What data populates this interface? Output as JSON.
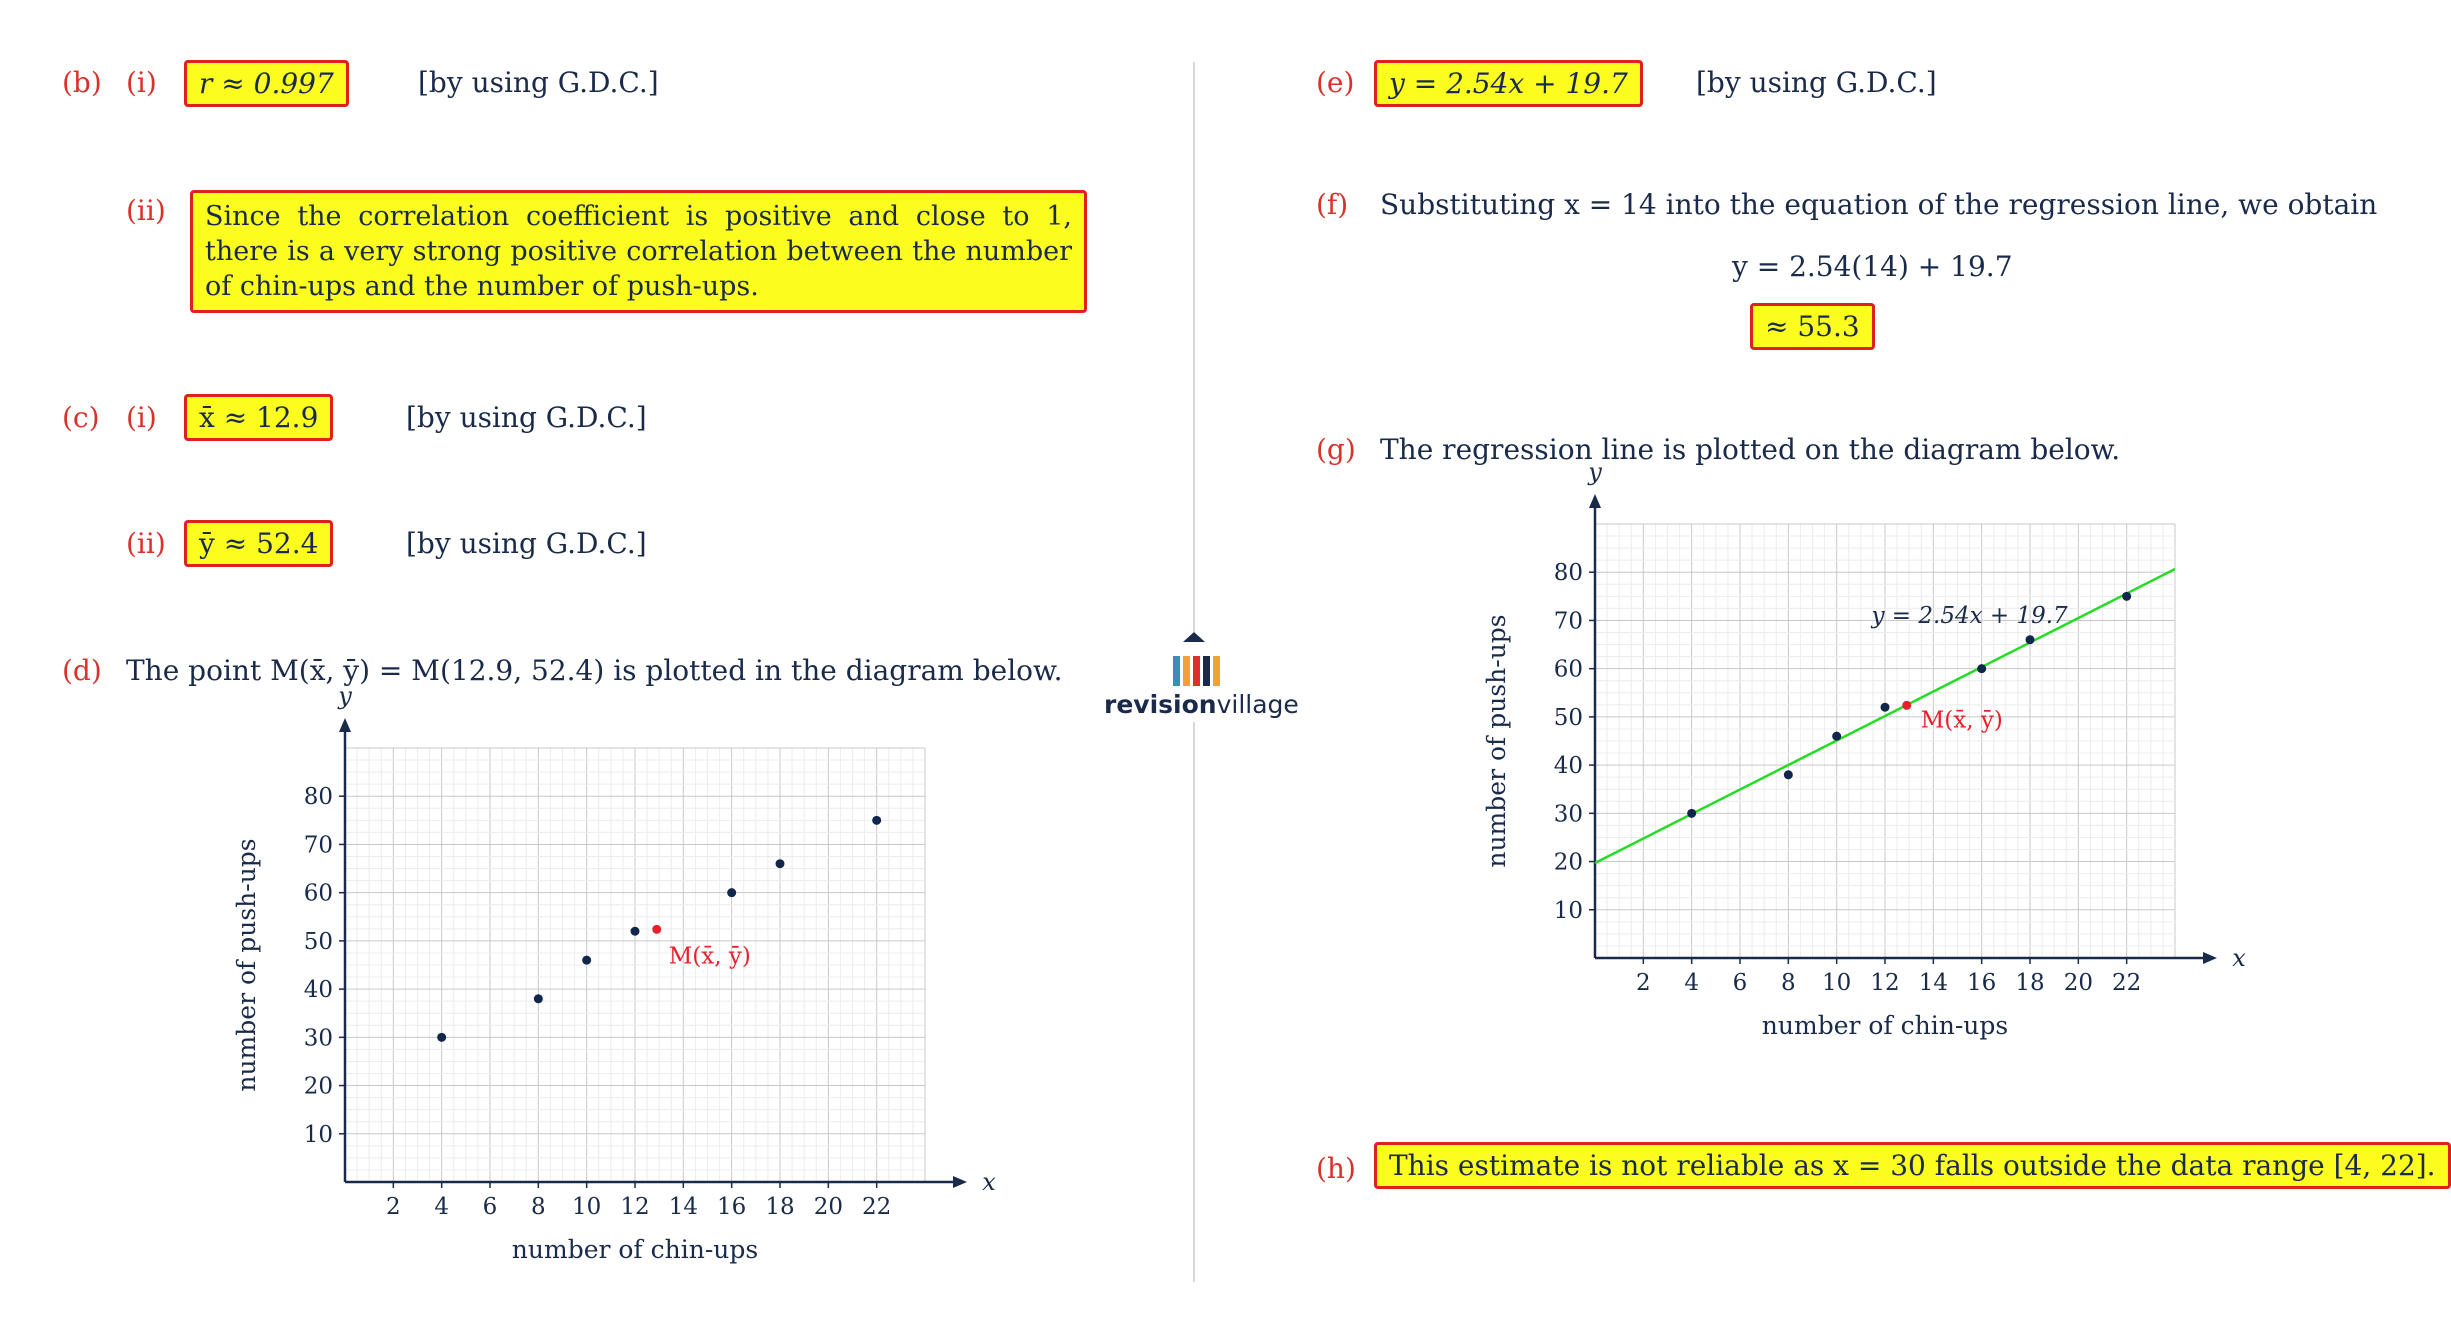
{
  "left": {
    "b_label": "(b)",
    "b_i_label": "(i)",
    "b_i_answer": "r ≈ 0.997",
    "b_i_note": "[by using G.D.C.]",
    "b_ii_label": "(ii)",
    "b_ii_answer": "Since the correlation coefficient is positive and close to 1, there is a very strong positive correlation between the number of chin-ups and the number of push-ups.",
    "c_label": "(c)",
    "c_i_label": "(i)",
    "c_i_answer": "x̄ ≈ 12.9",
    "c_i_note": "[by using G.D.C.]",
    "c_ii_label": "(ii)",
    "c_ii_answer": "ȳ ≈ 52.4",
    "c_ii_note": "[by using G.D.C.]",
    "d_label": "(d)",
    "d_text": "The point M(x̄, ȳ) = M(12.9, 52.4) is plotted in the diagram below."
  },
  "right": {
    "e_label": "(e)",
    "e_answer": "y = 2.54x + 19.7",
    "e_note": "[by using G.D.C.]",
    "f_label": "(f)",
    "f_text": "Substituting x = 14 into the equation of the regression line, we obtain",
    "f_equation": "y = 2.54(14) + 19.7",
    "f_answer": "≈ 55.3",
    "g_label": "(g)",
    "g_text": "The regression line is plotted on the diagram below.",
    "h_label": "(h)",
    "h_answer": "This estimate is not reliable as x = 30 falls outside the data range [4, 22]."
  },
  "logo": {
    "bold": "revision",
    "light": "village",
    "colors": [
      "#3a8fb7",
      "#f0a233",
      "#d9322b",
      "#1a2a4a"
    ]
  },
  "colors": {
    "label_red": "#d9322b",
    "highlight": "#fcfc1e",
    "border_red": "#e0201c",
    "regression_line": "#22dd22",
    "mean_point": "#e8202a",
    "data_point": "#10264a"
  },
  "chart_data": [
    {
      "type": "scatter",
      "title": "",
      "xlabel": "number of chin-ups",
      "ylabel": "number of push-ups",
      "x_axis_symbol": "x",
      "y_axis_symbol": "y",
      "xlim": [
        0,
        24
      ],
      "ylim": [
        0,
        90
      ],
      "xticks": [
        2,
        4,
        6,
        8,
        10,
        12,
        14,
        16,
        18,
        20,
        22
      ],
      "yticks": [
        10,
        20,
        30,
        40,
        50,
        60,
        70,
        80
      ],
      "grid": true,
      "series": [
        {
          "x": [
            4,
            8,
            10,
            12,
            16,
            18,
            22
          ],
          "y": [
            30,
            38,
            46,
            52,
            60,
            66,
            75
          ]
        }
      ],
      "mean_point": {
        "label": "M(x̄, ȳ)",
        "x": 12.9,
        "y": 52.4
      }
    },
    {
      "type": "scatter",
      "title": "",
      "xlabel": "number of chin-ups",
      "ylabel": "number of push-ups",
      "x_axis_symbol": "x",
      "y_axis_symbol": "y",
      "xlim": [
        0,
        24
      ],
      "ylim": [
        0,
        90
      ],
      "xticks": [
        2,
        4,
        6,
        8,
        10,
        12,
        14,
        16,
        18,
        20,
        22
      ],
      "yticks": [
        10,
        20,
        30,
        40,
        50,
        60,
        70,
        80
      ],
      "grid": true,
      "series": [
        {
          "x": [
            4,
            8,
            10,
            12,
            16,
            18,
            22
          ],
          "y": [
            30,
            38,
            46,
            52,
            60,
            66,
            75
          ]
        }
      ],
      "mean_point": {
        "label": "M(x̄, ȳ)",
        "x": 12.9,
        "y": 52.4
      },
      "regression_line": {
        "label": "y = 2.54x + 19.7",
        "slope": 2.54,
        "intercept": 19.7
      }
    }
  ]
}
